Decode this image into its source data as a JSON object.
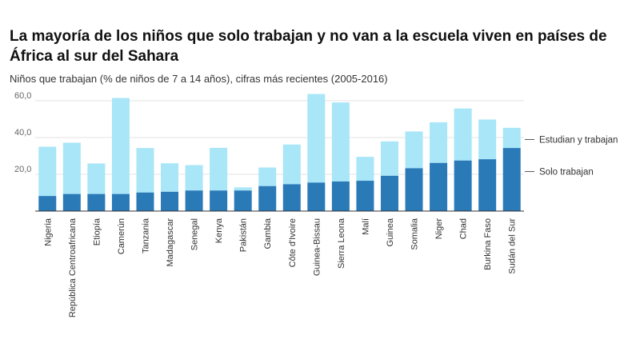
{
  "title": "La mayoría de los niños que solo trabajan y no van a la escuela viven en países de África al sur del Sahara",
  "subtitle": "Niños que trabajan (% de niños de 7 a 14 años), cifras más recientes (2005-2016)",
  "colors": {
    "estudian": "#a8e6f8",
    "solo": "#2a7ab8",
    "grid": "#e3e3e3",
    "axis": "#333333"
  },
  "chart_data": {
    "type": "bar",
    "stacked": true,
    "categories": [
      "Nigeria",
      "República Centroafricana",
      "Etiopía",
      "Camerún",
      "Tanzania",
      "Madagascar",
      "Senegal",
      "Kenya",
      "Pakistán",
      "Gambia",
      "Côte d'Ivoire",
      "Guinea-Bissau",
      "Sierra Leona",
      "Malí",
      "Guinea",
      "Somalia",
      "Niger",
      "Chad",
      "Burkina Faso",
      "Sudán del Sur"
    ],
    "series": [
      {
        "name": "Solo trabajan",
        "values": [
          8.2,
          9.3,
          9.3,
          9.3,
          10.1,
          10.5,
          11.2,
          11.2,
          11.2,
          13.6,
          14.6,
          15.5,
          16.1,
          16.5,
          19.2,
          23.3,
          26.2,
          27.5,
          28.2,
          34.3
        ]
      },
      {
        "name": "Estudian y trabajan",
        "values": [
          26.8,
          27.9,
          16.6,
          52.2,
          24.2,
          15.5,
          13.8,
          23.2,
          1.7,
          10.1,
          21.6,
          48.2,
          43.0,
          13.0,
          18.7,
          20.0,
          22.1,
          28.3,
          21.6,
          11.0
        ]
      }
    ],
    "yticks": [
      "20,0",
      "40,0",
      "60,0"
    ],
    "ylim": [
      0,
      65
    ],
    "grid": true,
    "legend_position": "right"
  }
}
